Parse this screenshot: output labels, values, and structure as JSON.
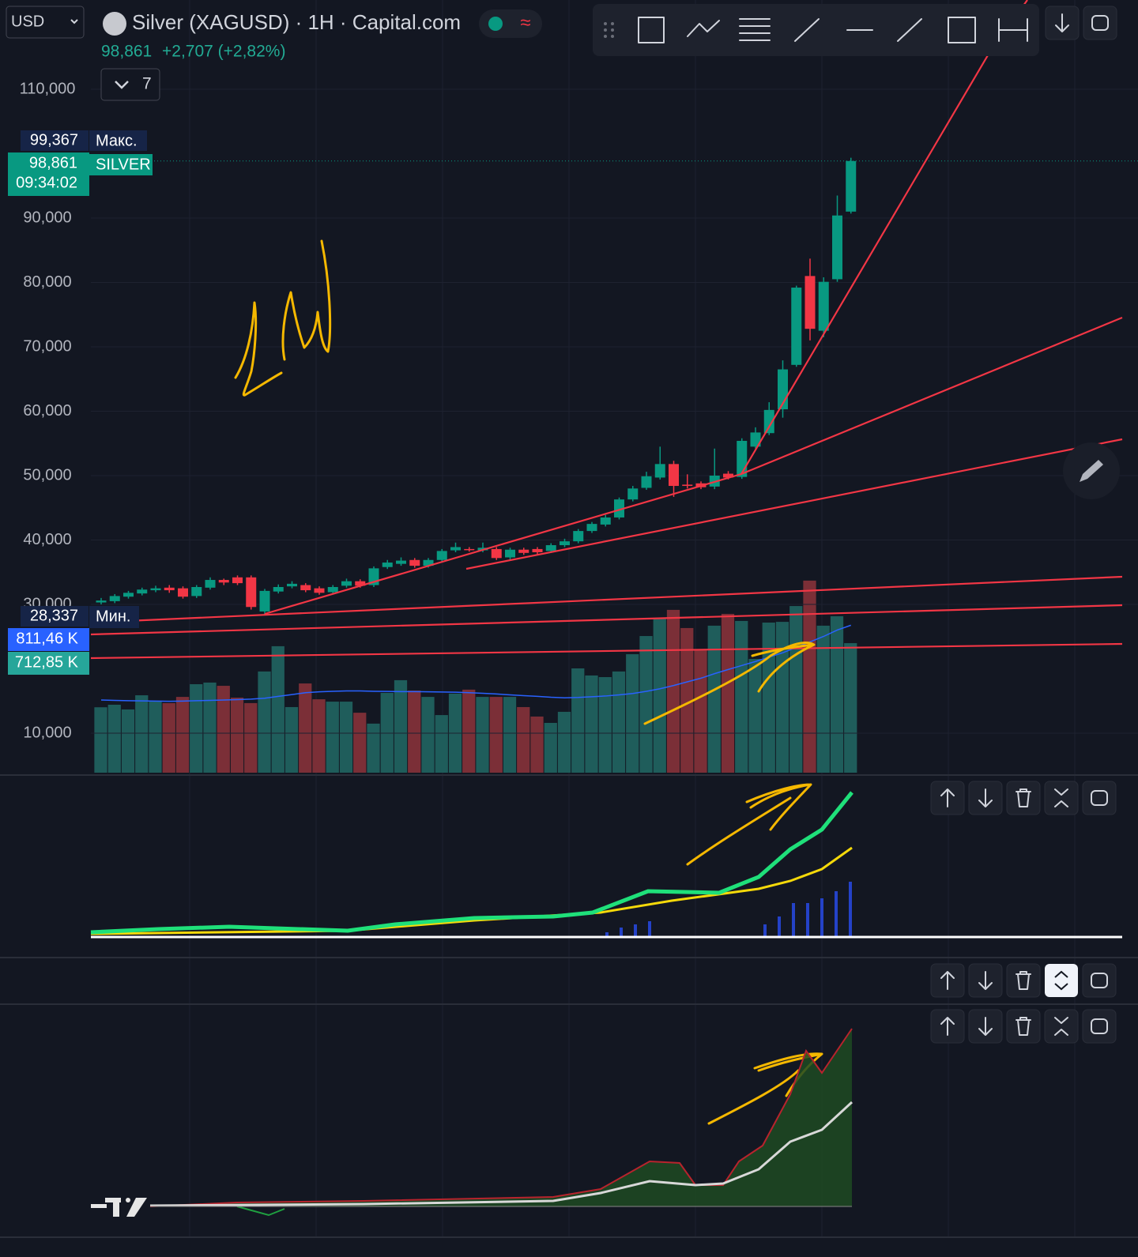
{
  "header": {
    "currency": "USD",
    "title": "Silver (XAGUSD) · 1H · Capital.com",
    "price": "98,861",
    "change": "+2,707 (+2,82%)",
    "indicators_count": "7"
  },
  "chart_data": {
    "type": "candlestick",
    "up_color": "#089981",
    "down_color": "#f23645",
    "ylim": [
      3865,
      123865
    ],
    "yticks": [
      {
        "value": 10000,
        "label": "10,000"
      },
      {
        "value": 30000,
        "label": "30,000"
      },
      {
        "value": 40000,
        "label": "40,000"
      },
      {
        "value": 50000,
        "label": "50,000"
      },
      {
        "value": 60000,
        "label": "60,000"
      },
      {
        "value": 70000,
        "label": "70,000"
      },
      {
        "value": 80000,
        "label": "80,000"
      },
      {
        "value": 90000,
        "label": "90,000"
      },
      {
        "value": 110000,
        "label": "110,000"
      }
    ],
    "grid": true,
    "open": [
      30300,
      30500,
      31200,
      31700,
      32200,
      32600,
      32500,
      31300,
      32600,
      33800,
      34200,
      34200,
      28900,
      32000,
      32800,
      33000,
      32500,
      31900,
      32900,
      33600,
      33000,
      35800,
      36300,
      36900,
      36000,
      36900,
      38400,
      38600,
      38400,
      38600,
      37300,
      38500,
      38600,
      38300,
      39200,
      39800,
      41400,
      42400,
      43500,
      46300,
      48100,
      49700,
      51800,
      48600,
      48800,
      48300,
      50300,
      49800,
      54500,
      56600,
      60300,
      67200,
      81000,
      72500,
      80500,
      91000
    ],
    "high": [
      31000,
      31600,
      32100,
      32600,
      32900,
      33000,
      32800,
      33000,
      34200,
      34000,
      34500,
      34500,
      32400,
      33100,
      33600,
      33300,
      32800,
      33000,
      34000,
      33900,
      35900,
      36900,
      37300,
      37200,
      37200,
      38600,
      39600,
      38900,
      39600,
      38900,
      38800,
      38800,
      38900,
      39500,
      40200,
      41700,
      42800,
      43900,
      46600,
      48400,
      50600,
      54500,
      52300,
      50200,
      49100,
      54200,
      50700,
      55800,
      57500,
      61400,
      67900,
      79500,
      83700,
      80800,
      93500,
      99367
    ],
    "low": [
      30000,
      30200,
      30900,
      31400,
      31900,
      31800,
      30900,
      31000,
      32300,
      33000,
      33000,
      29200,
      28337,
      31700,
      32500,
      31900,
      31500,
      31600,
      32600,
      32600,
      32700,
      35500,
      36000,
      35700,
      35700,
      36600,
      38100,
      38200,
      38100,
      36900,
      37000,
      37700,
      37800,
      38000,
      38900,
      39500,
      41100,
      42100,
      43200,
      46000,
      47800,
      49400,
      46700,
      48000,
      47900,
      47900,
      49400,
      49500,
      54200,
      56300,
      59000,
      66900,
      71000,
      71500,
      80100,
      90700
    ],
    "close": [
      30600,
      31300,
      31800,
      32300,
      32500,
      32200,
      31200,
      32700,
      33800,
      33400,
      33300,
      29600,
      32100,
      32700,
      33200,
      32200,
      31800,
      32700,
      33600,
      32900,
      35600,
      36500,
      36800,
      36000,
      36900,
      38300,
      38900,
      38500,
      38800,
      37200,
      38500,
      38000,
      38100,
      39200,
      39800,
      41400,
      42500,
      43500,
      46300,
      48000,
      49900,
      51800,
      48400,
      48400,
      48200,
      50000,
      49700,
      55400,
      56700,
      60200,
      66500,
      79200,
      72800,
      80100,
      90400,
      98861
    ],
    "volume": {
      "ylim": [
        0,
        4252
      ],
      "up_color": "#1f5d5b",
      "down_color": "#7b2f37",
      "ma_color": "#2962ff",
      "values": [
        360,
        374,
        348,
        426,
        396,
        383,
        417,
        487,
        496,
        478,
        413,
        383,
        557,
        696,
        361,
        491,
        404,
        391,
        391,
        330,
        270,
        439,
        509,
        452,
        417,
        317,
        435,
        457,
        417,
        417,
        417,
        361,
        309,
        274,
        335,
        574,
        535,
        526,
        557,
        652,
        752,
        852,
        896,
        796,
        678,
        809,
        874,
        835,
        626,
        826,
        830,
        917,
        1057,
        809,
        861,
        712.85
      ],
      "ma": [
        400,
        398,
        396,
        395,
        394,
        393,
        394,
        396,
        398,
        400,
        402,
        405,
        410,
        420,
        430,
        440,
        445,
        448,
        450,
        450,
        448,
        447,
        446,
        446,
        445,
        444,
        443,
        440,
        437,
        433,
        428,
        424,
        420,
        415,
        412,
        414,
        418,
        422,
        428,
        436,
        448,
        462,
        480,
        500,
        520,
        545,
        568,
        590,
        612,
        636,
        660,
        690,
        720,
        750,
        785,
        811.46
      ],
      "ma_label": {
        "value": 811.46,
        "label": "811,46 K"
      },
      "last_label": {
        "value": 712.85,
        "label": "712,85 K"
      }
    },
    "max": {
      "value": 99367,
      "label": "99,367",
      "tag": "Макс."
    },
    "current": {
      "value": 98861,
      "label": "98,861",
      "time": "09:34:02",
      "symbol": "SILVER"
    },
    "min": {
      "value": 28337,
      "label": "28,337",
      "tag": "Мин."
    }
  }
}
